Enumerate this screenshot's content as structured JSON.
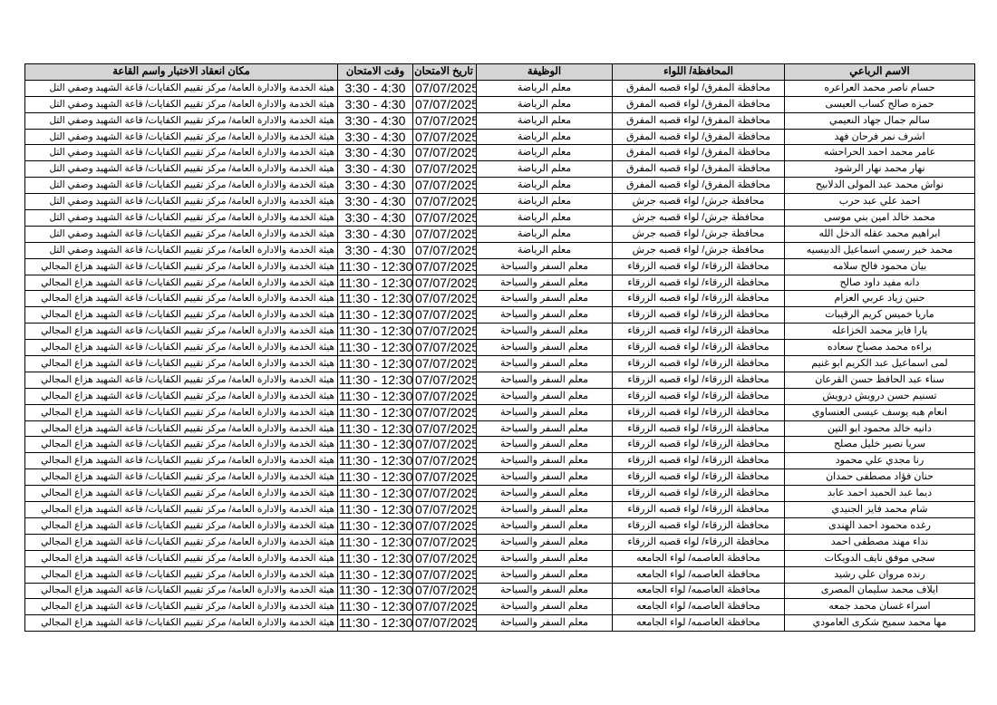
{
  "headers": {
    "name": "الاسم الرباعي",
    "governorate": "المحافظة/ اللواء",
    "job": "الوظيفة",
    "date": "تاريخ الامتحان",
    "time": "وقت الامتحان",
    "location": "مكان انعقاد الاختبار واسم القاعة"
  },
  "rows": [
    {
      "name": "حسام ناصر محمد العراعره",
      "governorate": "محافظة المفرق/ لواء قصبه المفرق",
      "job": "معلم الرياضة",
      "date": "07/07/2025",
      "time": "3:30 - 4:30",
      "location": "هيئة الخدمة والادارة العامة/ مركز تقييم الكفايات/ قاعة الشهيد وصفي التل"
    },
    {
      "name": "حمزه صالح كساب العيسى",
      "governorate": "محافظة المفرق/ لواء قصبه المفرق",
      "job": "معلم الرياضة",
      "date": "07/07/2025",
      "time": "3:30 - 4:30",
      "location": "هيئة الخدمة والادارة العامة/ مركز تقييم الكفايات/ قاعة الشهيد وصفي التل"
    },
    {
      "name": "سالم جمال جهاد النعيمي",
      "governorate": "محافظة المفرق/ لواء قصبه المفرق",
      "job": "معلم الرياضة",
      "date": "07/07/2025",
      "time": "3:30 - 4:30",
      "location": "هيئة الخدمة والادارة العامة/ مركز تقييم الكفايات/ قاعة الشهيد وصفي التل"
    },
    {
      "name": "اشرف نمر فرحان فهد",
      "governorate": "محافظة المفرق/ لواء قصبه المفرق",
      "job": "معلم الرياضة",
      "date": "07/07/2025",
      "time": "3:30 - 4:30",
      "location": "هيئة الخدمة والادارة العامة/ مركز تقييم الكفايات/ قاعة الشهيد وصفي التل"
    },
    {
      "name": "عامر محمد احمد الحراحشه",
      "governorate": "محافظة المفرق/ لواء قصبه المفرق",
      "job": "معلم الرياضة",
      "date": "07/07/2025",
      "time": "3:30 - 4:30",
      "location": "هيئة الخدمة والادارة العامة/ مركز تقييم الكفايات/ قاعة الشهيد وصفي التل"
    },
    {
      "name": "نهار محمد نهار الرشود",
      "governorate": "محافظة المفرق/ لواء قصبه المفرق",
      "job": "معلم الرياضة",
      "date": "07/07/2025",
      "time": "3:30 - 4:30",
      "location": "هيئة الخدمة والادارة العامة/ مركز تقييم الكفايات/ قاعة الشهيد وصفي التل"
    },
    {
      "name": "نواش محمد عبد المولى الدلابيح",
      "governorate": "محافظة المفرق/ لواء قصبه المفرق",
      "job": "معلم الرياضة",
      "date": "07/07/2025",
      "time": "3:30 - 4:30",
      "location": "هيئة الخدمة والادارة العامة/ مركز تقييم الكفايات/ قاعة الشهيد وصفي التل"
    },
    {
      "name": "احمد علي عبد حرب",
      "governorate": "محافظة جرش/ لواء قصبه جرش",
      "job": "معلم الرياضة",
      "date": "07/07/2025",
      "time": "3:30 - 4:30",
      "location": "هيئة الخدمة والادارة العامة/ مركز تقييم الكفايات/ قاعة الشهيد وصفي التل"
    },
    {
      "name": "محمد خالد امين بني موسى",
      "governorate": "محافظة جرش/ لواء قصبه جرش",
      "job": "معلم الرياضة",
      "date": "07/07/2025",
      "time": "3:30 - 4:30",
      "location": "هيئة الخدمة والادارة العامة/ مركز تقييم الكفايات/ قاعة الشهيد وصفي التل"
    },
    {
      "name": "ابراهيم محمد عقله الدخل الله",
      "governorate": "محافظة جرش/ لواء قصبه جرش",
      "job": "معلم الرياضة",
      "date": "07/07/2025",
      "time": "3:30 - 4:30",
      "location": "هيئة الخدمة والادارة العامة/ مركز تقييم الكفايات/ قاعة الشهيد وصفي التل"
    },
    {
      "name": "محمد خير رسمي اسماعيل الدبيسيه",
      "governorate": "محافظة جرش/ لواء قصبه جرش",
      "job": "معلم الرياضة",
      "date": "07/07/2025",
      "time": "3:30 - 4:30",
      "location": "هيئة الخدمة والادارة العامة/ مركز تقييم الكفايات/ قاعة الشهيد وصفي التل"
    },
    {
      "name": "بيان محمود فالح سلامه",
      "governorate": "محافظة الزرقاء/ لواء قصبه الزرقاء",
      "job": "معلم السفر والسياحة",
      "date": "07/07/2025",
      "time": "11:30 - 12:30",
      "location": "هيئة الخدمة والادارة العامة/ مركز تقييم الكفايات/ قاعة الشهيد هزاع المجالي"
    },
    {
      "name": "دانه مفيد داود صالح",
      "governorate": "محافظة الزرقاء/ لواء قصبه الزرقاء",
      "job": "معلم السفر والسياحة",
      "date": "07/07/2025",
      "time": "11:30 - 12:30",
      "location": "هيئة الخدمة والادارة العامة/ مركز تقييم الكفايات/ قاعة الشهيد هزاع المجالي"
    },
    {
      "name": "حنين زياد عربي العزام",
      "governorate": "محافظة الزرقاء/ لواء قصبه الزرقاء",
      "job": "معلم السفر والسياحة",
      "date": "07/07/2025",
      "time": "11:30 - 12:30",
      "location": "هيئة الخدمة والادارة العامة/ مركز تقييم الكفايات/ قاعة الشهيد هزاع المجالي"
    },
    {
      "name": "ماريا خميس كريم الرقيبات",
      "governorate": "محافظة الزرقاء/ لواء قصبه الزرقاء",
      "job": "معلم السفر والسياحة",
      "date": "07/07/2025",
      "time": "11:30 - 12:30",
      "location": "هيئة الخدمة والادارة العامة/ مركز تقييم الكفايات/ قاعة الشهيد هزاع المجالي"
    },
    {
      "name": "يارا فايز محمد الخزاعله",
      "governorate": "محافظة الزرقاء/ لواء قصبه الزرقاء",
      "job": "معلم السفر والسياحة",
      "date": "07/07/2025",
      "time": "11:30 - 12:30",
      "location": "هيئة الخدمة والادارة العامة/ مركز تقييم الكفايات/ قاعة الشهيد هزاع المجالي"
    },
    {
      "name": "براءه محمد مصباح سعاده",
      "governorate": "محافظة الزرقاء/ لواء قصبه الزرقاء",
      "job": "معلم السفر والسياحة",
      "date": "07/07/2025",
      "time": "11:30 - 12:30",
      "location": "هيئة الخدمة والادارة العامة/ مركز تقييم الكفايات/ قاعة الشهيد هزاع المجالي"
    },
    {
      "name": "لمى اسماعيل عبد الكريم ابو غنيم",
      "governorate": "محافظة الزرقاء/ لواء قصبه الزرقاء",
      "job": "معلم السفر والسياحة",
      "date": "07/07/2025",
      "time": "11:30 - 12:30",
      "location": "هيئة الخدمة والادارة العامة/ مركز تقييم الكفايات/ قاعة الشهيد هزاع المجالي"
    },
    {
      "name": "سناء عبد الحافظ حسن القرعان",
      "governorate": "محافظة الزرقاء/ لواء قصبه الزرقاء",
      "job": "معلم السفر والسياحة",
      "date": "07/07/2025",
      "time": "11:30 - 12:30",
      "location": "هيئة الخدمة والادارة العامة/ مركز تقييم الكفايات/ قاعة الشهيد هزاع المجالي"
    },
    {
      "name": "تسنيم حسن درويش درويش",
      "governorate": "محافظة الزرقاء/ لواء قصبه الزرقاء",
      "job": "معلم السفر والسياحة",
      "date": "07/07/2025",
      "time": "11:30 - 12:30",
      "location": "هيئة الخدمة والادارة العامة/ مركز تقييم الكفايات/ قاعة الشهيد هزاع المجالي"
    },
    {
      "name": "انعام هبه يوسف عيسى العنساوي",
      "governorate": "محافظة الزرقاء/ لواء قصبه الزرقاء",
      "job": "معلم السفر والسياحة",
      "date": "07/07/2025",
      "time": "11:30 - 12:30",
      "location": "هيئة الخدمة والادارة العامة/ مركز تقييم الكفايات/ قاعة الشهيد هزاع المجالي"
    },
    {
      "name": "دانيه خالد محمود ابو التين",
      "governorate": "محافظة الزرقاء/ لواء قصبه الزرقاء",
      "job": "معلم السفر والسياحة",
      "date": "07/07/2025",
      "time": "11:30 - 12:30",
      "location": "هيئة الخدمة والادارة العامة/ مركز تقييم الكفايات/ قاعة الشهيد هزاع المجالي"
    },
    {
      "name": "سريا نصير خليل مصلح",
      "governorate": "محافظة الزرقاء/ لواء قصبه الزرقاء",
      "job": "معلم السفر والسياحة",
      "date": "07/07/2025",
      "time": "11:30 - 12:30",
      "location": "هيئة الخدمة والادارة العامة/ مركز تقييم الكفايات/ قاعة الشهيد هزاع المجالي"
    },
    {
      "name": "رنا مجدي علي محمود",
      "governorate": "محافظة الزرقاء/ لواء قصبه الزرقاء",
      "job": "معلم السفر والسياحة",
      "date": "07/07/2025",
      "time": "11:30 - 12:30",
      "location": "هيئة الخدمة والادارة العامة/ مركز تقييم الكفايات/ قاعة الشهيد هزاع المجالي"
    },
    {
      "name": "حنان فؤاد مصطفى حمدان",
      "governorate": "محافظة الزرقاء/ لواء قصبه الزرقاء",
      "job": "معلم السفر والسياحة",
      "date": "07/07/2025",
      "time": "11:30 - 12:30",
      "location": "هيئة الخدمة والادارة العامة/ مركز تقييم الكفايات/ قاعة الشهيد هزاع المجالي"
    },
    {
      "name": "ديما عبد الحميد احمد عابد",
      "governorate": "محافظة الزرقاء/ لواء قصبه الزرقاء",
      "job": "معلم السفر والسياحة",
      "date": "07/07/2025",
      "time": "11:30 - 12:30",
      "location": "هيئة الخدمة والادارة العامة/ مركز تقييم الكفايات/ قاعة الشهيد هزاع المجالي"
    },
    {
      "name": "شام محمد فايز الجنيدي",
      "governorate": "محافظة الزرقاء/ لواء قصبه الزرقاء",
      "job": "معلم السفر والسياحة",
      "date": "07/07/2025",
      "time": "11:30 - 12:30",
      "location": "هيئة الخدمة والادارة العامة/ مركز تقييم الكفايات/ قاعة الشهيد هزاع المجالي"
    },
    {
      "name": "رغده محمود احمد الهندى",
      "governorate": "محافظة الزرقاء/ لواء قصبه الزرقاء",
      "job": "معلم السفر والسياحة",
      "date": "07/07/2025",
      "time": "11:30 - 12:30",
      "location": "هيئة الخدمة والادارة العامة/ مركز تقييم الكفايات/ قاعة الشهيد هزاع المجالي"
    },
    {
      "name": "نداء مهند مصطفى احمد",
      "governorate": "محافظة الزرقاء/ لواء قصبه الزرقاء",
      "job": "معلم السفر والسياحة",
      "date": "07/07/2025",
      "time": "11:30 - 12:30",
      "location": "هيئة الخدمة والادارة العامة/ مركز تقييم الكفايات/ قاعة الشهيد هزاع المجالي"
    },
    {
      "name": "سجى موفق نايف الدويكات",
      "governorate": "محافظة العاصمه/ لواء الجامعه",
      "job": "معلم السفر والسياحة",
      "date": "07/07/2025",
      "time": "11:30 - 12:30",
      "location": "هيئة الخدمة والادارة العامة/ مركز تقييم الكفايات/ قاعة الشهيد هزاع المجالي"
    },
    {
      "name": "رنده مروان علي رشيد",
      "governorate": "محافظة العاصمه/ لواء الجامعه",
      "job": "معلم السفر والسياحة",
      "date": "07/07/2025",
      "time": "11:30 - 12:30",
      "location": "هيئة الخدمة والادارة العامة/ مركز تقييم الكفايات/ قاعة الشهيد هزاع المجالي"
    },
    {
      "name": "ايلاف محمد سليمان المصرى",
      "governorate": "محافظة العاصمه/ لواء الجامعه",
      "job": "معلم السفر والسياحة",
      "date": "07/07/2025",
      "time": "11:30 - 12:30",
      "location": "هيئة الخدمة والادارة العامة/ مركز تقييم الكفايات/ قاعة الشهيد هزاع المجالي"
    },
    {
      "name": "اسراء غسان محمد جمعه",
      "governorate": "محافظة العاصمه/ لواء الجامعه",
      "job": "معلم السفر والسياحة",
      "date": "07/07/2025",
      "time": "11:30 - 12:30",
      "location": "هيئة الخدمة والادارة العامة/ مركز تقييم الكفايات/ قاعة الشهيد هزاع المجالي"
    },
    {
      "name": "مها محمد سميح شكرى العامودي",
      "governorate": "محافظة العاصمه/ لواء الجامعه",
      "job": "معلم السفر والسياحة",
      "date": "07/07/2025",
      "time": "11:30 - 12:30",
      "location": "هيئة الخدمة والادارة العامة/ مركز تقييم الكفايات/ قاعة الشهيد هزاع المجالي"
    }
  ]
}
